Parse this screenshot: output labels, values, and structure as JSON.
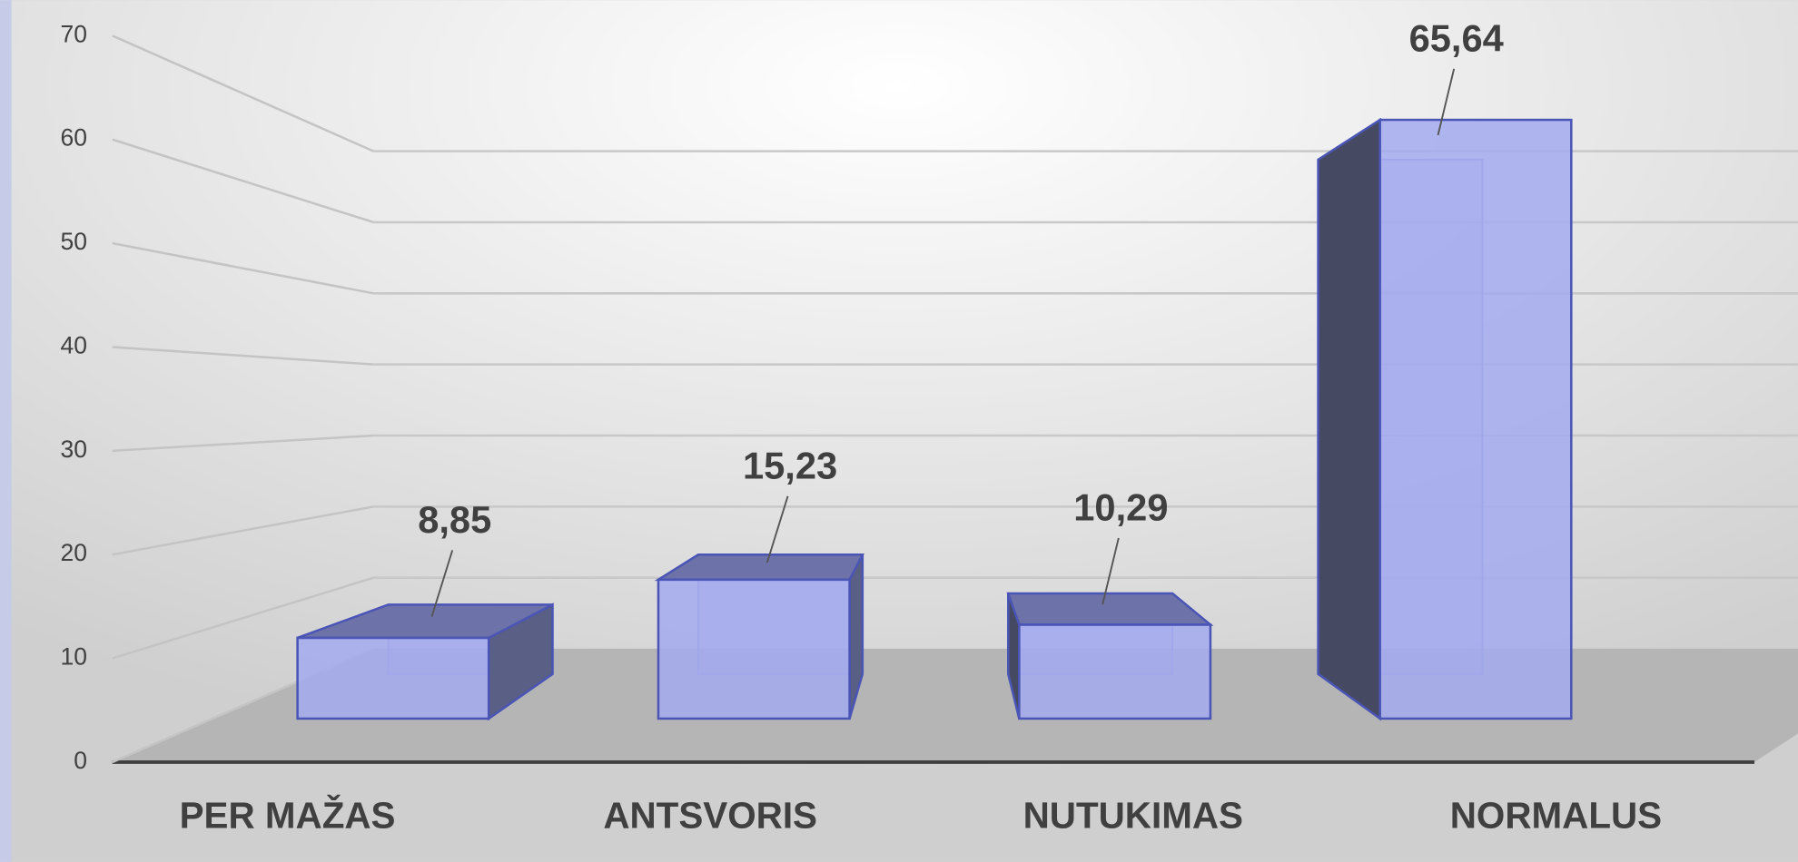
{
  "chart_data": {
    "type": "bar3d",
    "categories": [
      "PER MAŽAS",
      "ANTSVORIS",
      "NUTUKIMAS",
      "NORMALUS"
    ],
    "values": [
      8.85,
      15.23,
      10.29,
      65.64
    ],
    "value_labels": [
      "8,85",
      "15,23",
      "10,29",
      "65,64"
    ],
    "color": "#a3aaee",
    "ylim": [
      0,
      70
    ],
    "yticks": [
      0,
      10,
      20,
      30,
      40,
      50,
      60,
      70
    ],
    "grid": true
  }
}
